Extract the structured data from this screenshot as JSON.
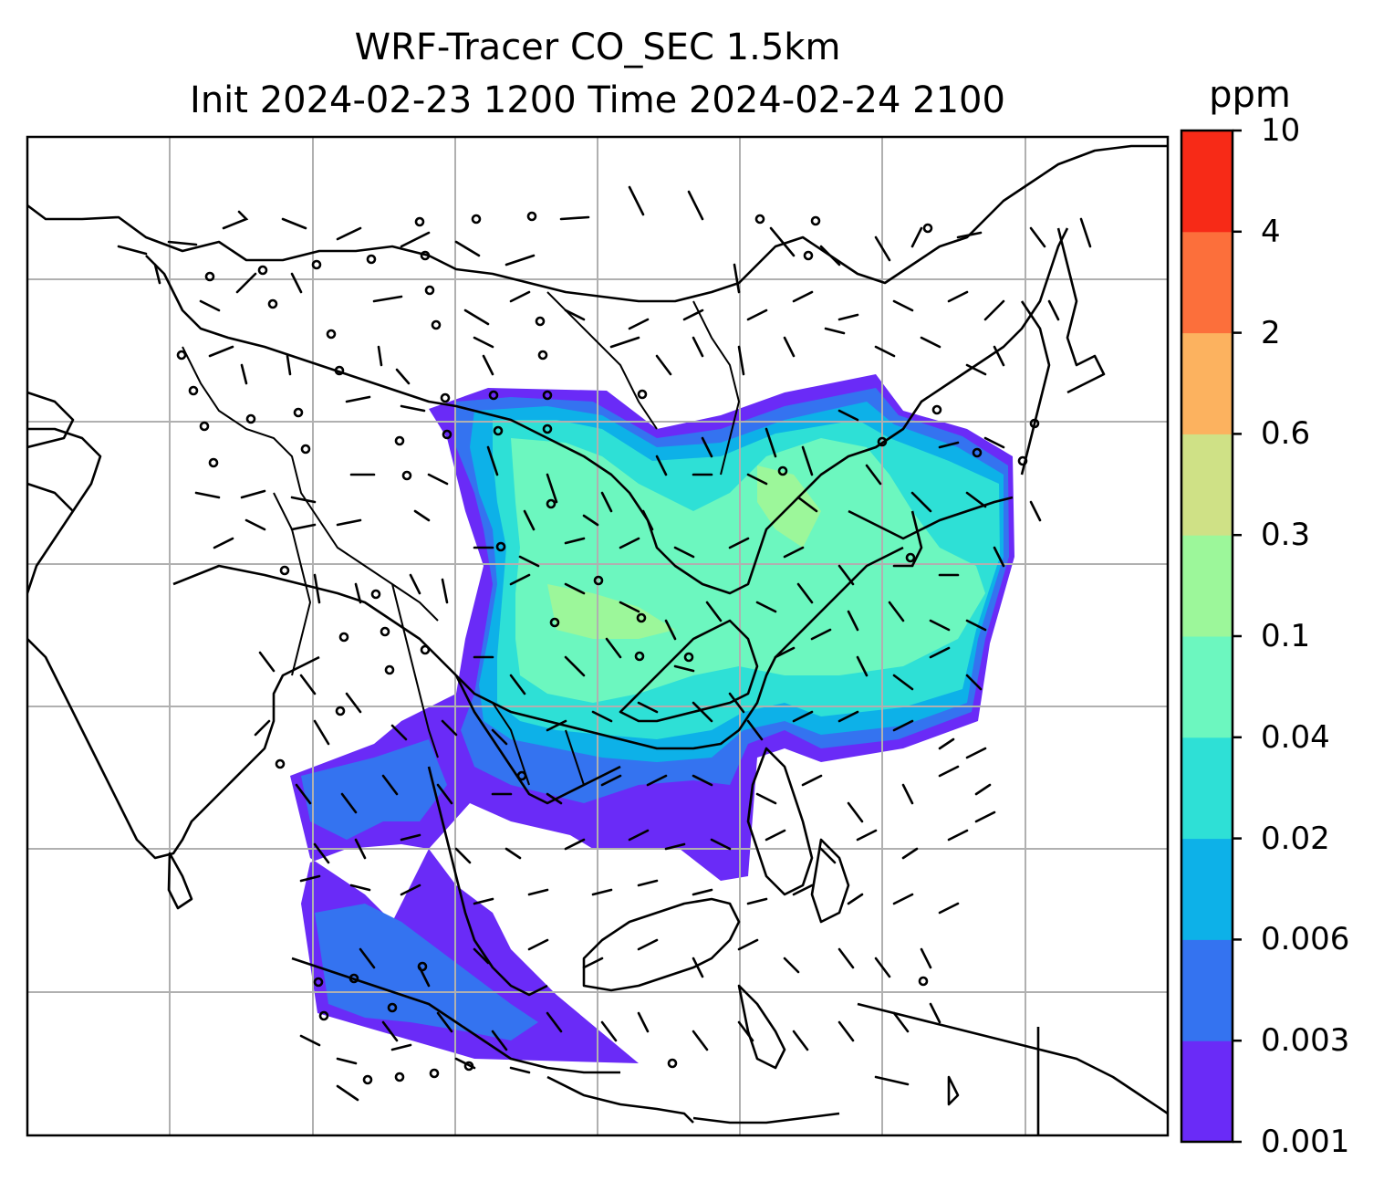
{
  "title": {
    "line1": "WRF-Tracer CO_SEC 1.5km",
    "line2": "Init 2024-02-23 1200 Time 2024-02-24 2100"
  },
  "colorbar": {
    "unit": "ppm",
    "ticks": [
      "0.001",
      "0.003",
      "0.006",
      "0.02",
      "0.04",
      "0.1",
      "0.3",
      "0.6",
      "2",
      "4",
      "10"
    ],
    "colors": [
      "#6a2bf7",
      "#3473f0",
      "#0db1e8",
      "#2ee0d6",
      "#6cf7bf",
      "#9cf79a",
      "#cfe186",
      "#fcb25f",
      "#fc6f3b",
      "#f72a17"
    ]
  },
  "map": {
    "grid": "on",
    "field_description": "CO_SEC tracer concentration with wind barbs over East and Southeast Asia"
  }
}
